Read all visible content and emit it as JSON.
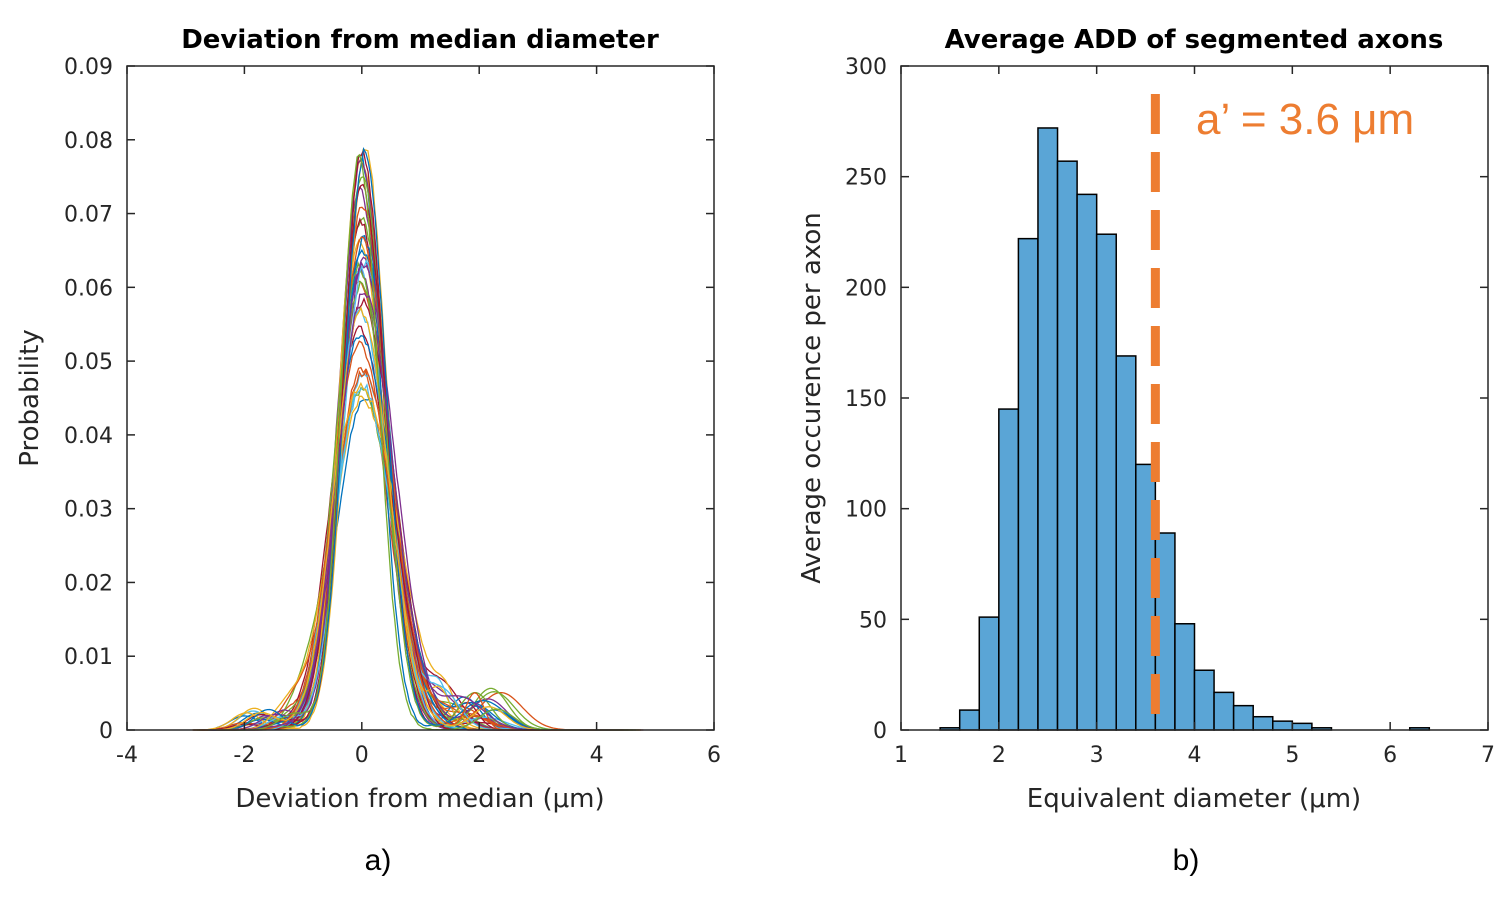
{
  "chart_data": [
    {
      "type": "line",
      "title": "Deviation from median diameter",
      "xlabel": "Deviation from median (μm)",
      "ylabel": "Probability",
      "caption": "a)",
      "xlim": [
        -4,
        6
      ],
      "ylim": [
        0,
        0.09
      ],
      "xticks": [
        -4,
        -2,
        0,
        2,
        4,
        6
      ],
      "xtick_labels": [
        "-4",
        "-2",
        "0",
        "2",
        "4",
        "6"
      ],
      "yticks": [
        0,
        0.01,
        0.02,
        0.03,
        0.04,
        0.05,
        0.06,
        0.07,
        0.08,
        0.09
      ],
      "ytick_labels": [
        "0",
        "0.01",
        "0.02",
        "0.03",
        "0.04",
        "0.05",
        "0.06",
        "0.07",
        "0.08",
        "0.09"
      ],
      "grid": false,
      "legend": "none",
      "series_count": 40,
      "peak_range": [
        0.045,
        0.08
      ],
      "x_range_of_curves": [
        -2.9,
        4.9
      ],
      "colors": [
        "#0072BD",
        "#D95319",
        "#EDB120",
        "#7E2F8E",
        "#77AC30",
        "#4DBEEE",
        "#A2142F"
      ]
    },
    {
      "type": "bar",
      "title": "Average ADD of segmented axons",
      "xlabel": "Equivalent diameter (μm)",
      "ylabel": "Average occurence per axon",
      "caption": "b)",
      "xlim": [
        1,
        7
      ],
      "ylim": [
        0,
        300
      ],
      "xticks": [
        1,
        2,
        3,
        4,
        5,
        6,
        7
      ],
      "xtick_labels": [
        "1",
        "2",
        "3",
        "4",
        "5",
        "6",
        "7"
      ],
      "yticks": [
        0,
        50,
        100,
        150,
        200,
        250,
        300
      ],
      "ytick_labels": [
        "0",
        "50",
        "100",
        "150",
        "200",
        "250",
        "300"
      ],
      "grid": false,
      "legend": "none",
      "bin_edges": [
        1.4,
        1.6,
        1.8,
        2.0,
        2.2,
        2.4,
        2.6,
        2.8,
        3.0,
        3.2,
        3.4,
        3.6,
        3.8,
        4.0,
        4.2,
        4.4,
        4.6,
        4.8,
        5.0,
        5.2,
        5.4,
        5.6,
        5.8,
        6.0,
        6.2,
        6.4
      ],
      "values": [
        1,
        9,
        51,
        145,
        222,
        272,
        257,
        242,
        224,
        169,
        120,
        89,
        48,
        27,
        17,
        11,
        6,
        4,
        3,
        1,
        0,
        0,
        0,
        0,
        1
      ],
      "bar_color": "#5AA5D6",
      "reference_line": {
        "x": 3.6,
        "color": "#ED7D31",
        "label": "a’ = 3.6 μm"
      }
    }
  ]
}
